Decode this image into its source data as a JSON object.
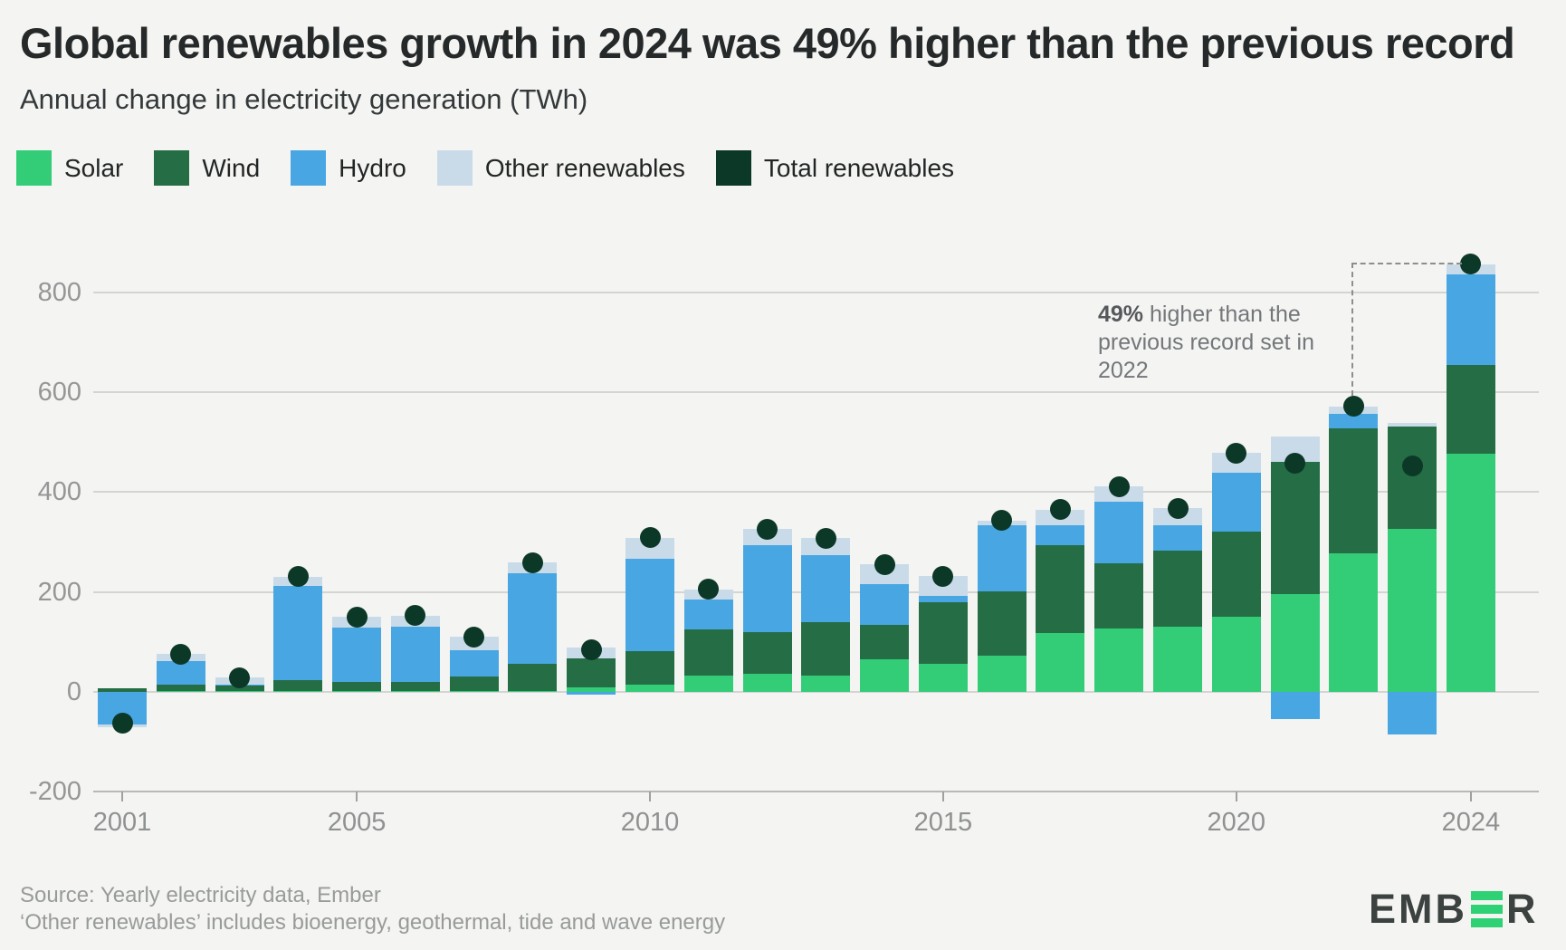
{
  "header": {
    "title": "Global renewables growth in 2024 was 49% higher than the previous record",
    "subtitle": "Annual change in electricity generation (TWh)"
  },
  "legend": [
    {
      "label": "Solar",
      "color": "#33cd78"
    },
    {
      "label": "Wind",
      "color": "#256e45"
    },
    {
      "label": "Hydro",
      "color": "#48a6e2"
    },
    {
      "label": "Other renewables",
      "color": "#c9dbe9"
    },
    {
      "label": "Total renewables",
      "color": "#0c3827"
    }
  ],
  "chart_data": {
    "type": "bar",
    "subtype": "stacked-bars-with-total-dots",
    "x": [
      2001,
      2002,
      2003,
      2004,
      2005,
      2006,
      2007,
      2008,
      2009,
      2010,
      2011,
      2012,
      2013,
      2014,
      2015,
      2016,
      2017,
      2018,
      2019,
      2020,
      2021,
      2022,
      2023,
      2024
    ],
    "series": [
      {
        "name": "Solar",
        "color": "#33cd78",
        "values": [
          0,
          1,
          1,
          1,
          1,
          1,
          2,
          2,
          9,
          15,
          33,
          36,
          33,
          66,
          57,
          72,
          117,
          127,
          130,
          151,
          195,
          277,
          327,
          476
        ]
      },
      {
        "name": "Wind",
        "color": "#256e45",
        "values": [
          7,
          13,
          12,
          22,
          19,
          19,
          28,
          55,
          58,
          66,
          93,
          84,
          107,
          69,
          123,
          130,
          177,
          130,
          152,
          170,
          265,
          250,
          204,
          179
        ]
      },
      {
        "name": "Hydro",
        "color": "#48a6e2",
        "values": [
          -65,
          48,
          2,
          190,
          108,
          110,
          54,
          181,
          -5,
          186,
          59,
          173,
          133,
          81,
          12,
          131,
          39,
          123,
          51,
          117,
          -54,
          29,
          -85,
          181
        ]
      },
      {
        "name": "Other renewables",
        "color": "#c9dbe9",
        "values": [
          -5,
          14,
          14,
          18,
          22,
          23,
          26,
          21,
          22,
          42,
          20,
          33,
          35,
          39,
          40,
          10,
          32,
          31,
          35,
          40,
          52,
          16,
          7,
          20
        ]
      }
    ],
    "dots": {
      "name": "Total renewables",
      "color": "#0c3827",
      "values": [
        -63,
        76,
        29,
        231,
        150,
        153,
        110,
        259,
        84,
        309,
        205,
        326,
        308,
        255,
        232,
        343,
        365,
        411,
        368,
        478,
        458,
        572,
        453,
        856
      ]
    },
    "title": "Global renewables growth in 2024 was 49% higher than the previous record",
    "subtitle_ylabel": "Annual change in electricity generation (TWh)",
    "ylim": [
      -200,
      880
    ],
    "yticks": [
      -200,
      0,
      200,
      400,
      600,
      800
    ],
    "xticks": [
      2001,
      2005,
      2010,
      2015,
      2020,
      2024
    ],
    "grid": "horizontal",
    "legend_position": "top-left",
    "annotation": {
      "bold": "49%",
      "rest": " higher than the previous record set in 2022",
      "connects": "2022 dot to 2024 dot"
    }
  },
  "annotation": {
    "bold": "49%",
    "rest": " higher than the previous record set in 2022"
  },
  "footer": {
    "line1": "Source: Yearly electricity data, Ember",
    "line2": "‘Other renewables’ includes bioenergy, geothermal, tide and wave energy"
  },
  "logo": {
    "prefix": "EMB",
    "suffix": "R"
  },
  "colors": {
    "background": "#f4f4f2",
    "gridline": "#d4d4d2",
    "axis": "#b7b9b7",
    "tick_label": "#949796",
    "annotation_line": "#8e8e8c"
  }
}
